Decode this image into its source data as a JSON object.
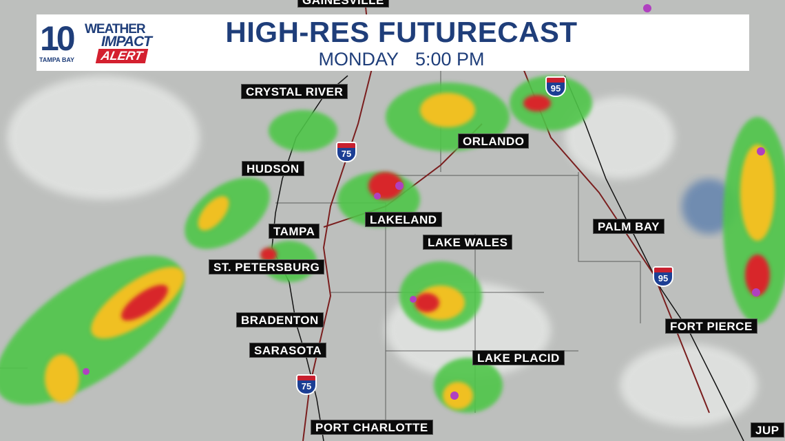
{
  "header": {
    "title": "HIGH-RES FUTURECAST",
    "day": "MONDAY",
    "time": "5:00 PM"
  },
  "logo": {
    "number": "10",
    "station": "TAMPA BAY",
    "line1": "WEATHER",
    "line2": "IMPACT",
    "line3": "ALERT"
  },
  "cities": {
    "gainesville": "GAINESVILLE",
    "crystal_river": "CRYSTAL RIVER",
    "hudson": "HUDSON",
    "tampa": "TAMPA",
    "st_petersburg": "ST. PETERSBURG",
    "bradenton": "BRADENTON",
    "sarasota": "SARASOTA",
    "port_charlotte": "PORT CHARLOTTE",
    "lakeland": "LAKELAND",
    "lake_wales": "LAKE WALES",
    "lake_placid": "LAKE PLACID",
    "orlando": "ORLANDO",
    "palm_bay": "PALM BAY",
    "fort_pierce": "FORT PIERCE",
    "jupiter": "JUP"
  },
  "highways": {
    "i75": "75",
    "i95": "95"
  },
  "colors": {
    "brand": "#1f3e7a",
    "alert": "#d4202f",
    "radar_light": "#4fc64a",
    "radar_heavy": "#f0c020",
    "radar_intense": "#d8252a",
    "radar_extreme": "#b040c0"
  }
}
